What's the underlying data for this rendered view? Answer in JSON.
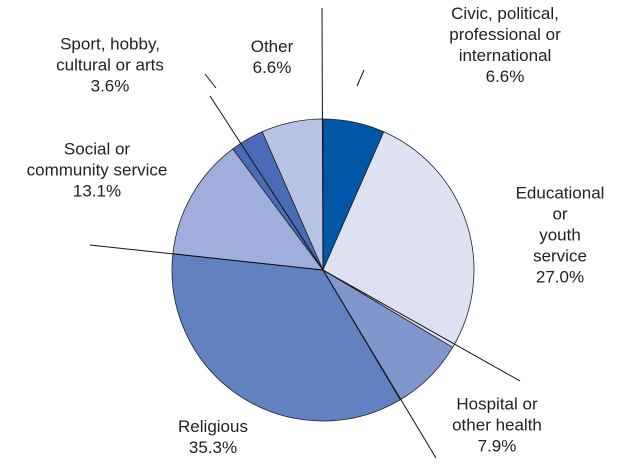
{
  "chart_data": {
    "type": "pie",
    "categories": [
      "Civic, political,\nprofessional or international",
      "Educational or\nyouth service",
      "Hospital or\nother health",
      "Religious",
      "Social or\ncommunity service",
      "Sport, hobby,\ncultural or arts",
      "Other"
    ],
    "values": [
      6.6,
      27.0,
      7.9,
      35.3,
      13.1,
      3.6,
      6.6
    ],
    "value_labels": [
      "6.6%",
      "27.0%",
      "7.9%",
      "35.3%",
      "13.1%",
      "3.6%",
      "6.6%"
    ],
    "colors": [
      "#0057a8",
      "#dde1f2",
      "#8096cc",
      "#6281c0",
      "#a0aedb",
      "#4a6cb8",
      "#b8c3e3"
    ]
  }
}
